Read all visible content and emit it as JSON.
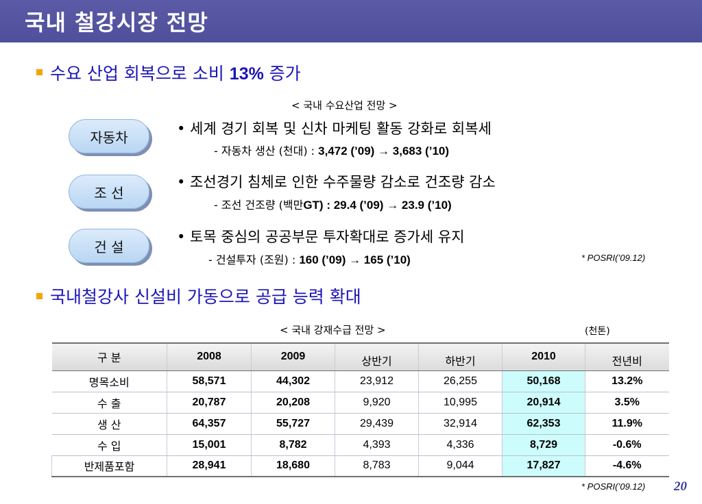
{
  "title": "국내 철강시장 전망",
  "section1": {
    "heading_pre": "수요 산업 회복으로 소비 ",
    "heading_num": "13%",
    "heading_post": " 증가",
    "caption": "< 국내 수요산업 전망 >",
    "items": [
      {
        "label": "자동차",
        "main": "• 세계 경기 회복 및 신차 마케팅 활동 강화로 회복세",
        "sub_pre": "- 자동차 생산 (천대) : ",
        "sub_val": "3,472 (’09) → 3,683 (’10)"
      },
      {
        "label": "조  선",
        "main": "• 조선경기 침체로 인한 수주물량 감소로 건조량 감소",
        "sub_pre": "- 조선 건조량 (백만",
        "sub_val": "GT) : 29.4 (’09) → 23.9 (’10)"
      },
      {
        "label": "건  설",
        "main": "• 토목 중심의 공공부문 투자확대로 증가세 유지",
        "sub_pre": "- 건설투자 (조원) : ",
        "sub_val": "160 (’09) → 165 (’10)"
      }
    ],
    "source": "* POSRI(’09.12)"
  },
  "section2": {
    "heading": "국내철강사 신설비 가동으로 공급 능력 확대",
    "caption": "< 국내 강재수급 전망 >",
    "unit": "(천톤)",
    "table": {
      "headers": [
        "구  분",
        "2008",
        "2009",
        "상반기",
        "하반기",
        "2010",
        "전년비"
      ],
      "rows": [
        [
          "명목소비",
          "58,571",
          "44,302",
          "23,912",
          "26,255",
          "50,168",
          "13.2%"
        ],
        [
          "수    출",
          "20,787",
          "20,208",
          "9,920",
          "10,995",
          "20,914",
          "3.5%"
        ],
        [
          "생    산",
          "64,357",
          "55,727",
          "29,439",
          "32,914",
          "62,353",
          "11.9%"
        ],
        [
          "수    입",
          "15,001",
          "8,782",
          "4,393",
          "4,336",
          "8,729",
          "-0.6%"
        ],
        [
          "반제품포함",
          "28,941",
          "18,680",
          "8,783",
          "9,044",
          "17,827",
          "-4.6%"
        ]
      ]
    },
    "source": "* POSRI(’09.12)"
  },
  "page_number": "20",
  "colors": {
    "title_bar": "#5151a0",
    "heading_blue": "#1b14b8",
    "bullet_orange": "#f5a300",
    "highlight": "#cdfcfc"
  }
}
